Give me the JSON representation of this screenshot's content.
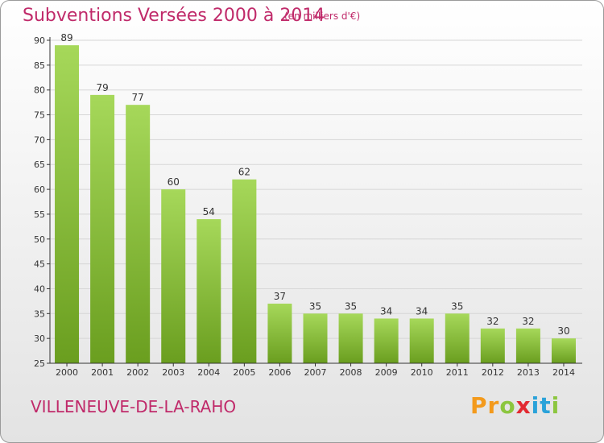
{
  "header": {
    "title": "Subventions Versées 2000 à 2014",
    "unit": "(en milliers d'€)"
  },
  "footer": {
    "city": "VILLENEUVE-DE-LA-RAHO",
    "logo_letters": [
      "P",
      "r",
      "o",
      "x",
      "i",
      "t",
      "i"
    ],
    "logo_colors": [
      "#f39a1c",
      "#f39a1c",
      "#8cc63f",
      "#e22a32",
      "#2aa2d9",
      "#2aa2d9",
      "#8cc63f"
    ]
  },
  "colors": {
    "bar_top": "#a6d85a",
    "bar_bottom": "#6a9e1f",
    "grid": "#d6d6d6",
    "axis": "#333333",
    "accent": "#c02a6a"
  },
  "chart_data": {
    "type": "bar",
    "title": "Subventions Versées 2000 à 2014",
    "subtitle": "(en milliers d'€)",
    "xlabel": "",
    "ylabel": "",
    "categories": [
      "2000",
      "2001",
      "2002",
      "2003",
      "2004",
      "2005",
      "2006",
      "2007",
      "2008",
      "2009",
      "2010",
      "2011",
      "2012",
      "2013",
      "2014"
    ],
    "values": [
      89,
      79,
      77,
      60,
      54,
      62,
      37,
      35,
      35,
      34,
      34,
      35,
      32,
      32,
      30
    ],
    "ylim": [
      25,
      90
    ],
    "yticks": [
      25,
      30,
      35,
      40,
      45,
      50,
      55,
      60,
      65,
      70,
      75,
      80,
      85,
      90
    ],
    "grid": true,
    "legend": "none"
  }
}
